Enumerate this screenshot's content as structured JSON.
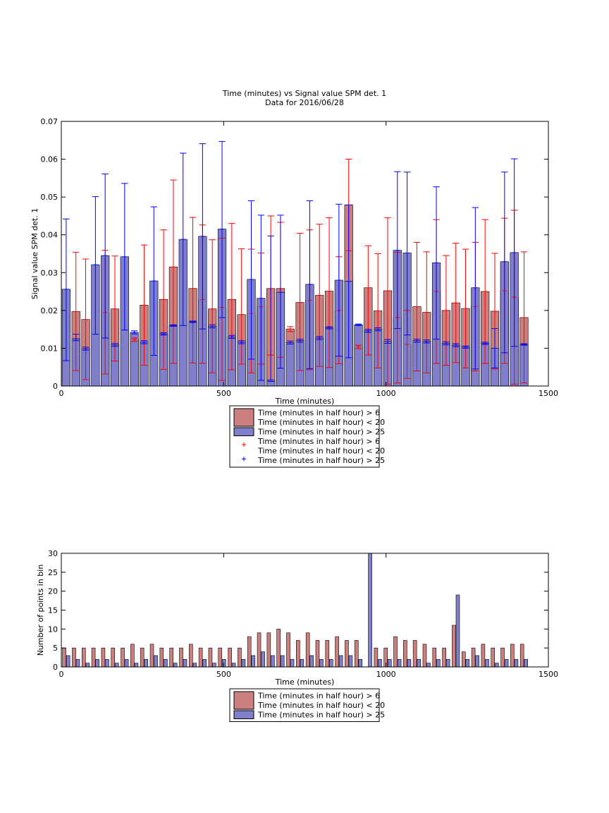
{
  "figure": {
    "title_line1": "Time (minutes) vs Signal value SPM det. 1",
    "title_line2": "Data for 2016/06/28"
  },
  "colors": {
    "red_bar": "#cc7f7f",
    "blue_bar": "#7f7fcc",
    "red_err": "#ff0000",
    "blue_err": "#0000ff"
  },
  "chart_data": [
    {
      "type": "bar",
      "title": "Time (minutes) vs Signal value SPM det. 1",
      "subtitle": "Data for 2016/06/28",
      "xlabel": "Time (minutes)",
      "ylabel": "Signal value SPM det. 1",
      "xlim": [
        0,
        1500
      ],
      "ylim": [
        0,
        0.07
      ],
      "xticks": [
        "0",
        "500",
        "1000",
        "1500"
      ],
      "yticks": [
        "0",
        "0.01",
        "0.02",
        "0.03",
        "0.04",
        "0.05",
        "0.06",
        "0.07"
      ],
      "grid": false,
      "legend_position": "below",
      "legend": [
        "Time (minutes in half hour) > 6\nTime (minutes in half hour) < 20",
        "Time (minutes in half hour) > 25",
        "Time (minutes in half hour) > 6\nTime (minutes in half hour) < 20",
        "Time (minutes in half hour) > 25"
      ],
      "series": [
        {
          "name": "Time (minutes in half hour) > 6 Time (minutes in half hour) < 20",
          "kind": "bar",
          "x": [
            45,
            75,
            135,
            165,
            225,
            255,
            315,
            345,
            405,
            435,
            465,
            495,
            525,
            555,
            585,
            615,
            645,
            675,
            705,
            735,
            765,
            795,
            825,
            855,
            885,
            915,
            945,
            975,
            1005,
            1035,
            1065,
            1095,
            1125,
            1155,
            1185,
            1215,
            1245,
            1275,
            1305,
            1335,
            1365,
            1395,
            1425
          ],
          "values": [
            0.0197,
            0.0176,
            0.0194,
            0.0204,
            0.0123,
            0.0214,
            0.0229,
            0.0315,
            0.0258,
            0.0229,
            0.0204,
            0.0208,
            0.0229,
            0.0189,
            0.0192,
            0.021,
            0.0258,
            0.0258,
            0.0151,
            0.0221,
            0.0227,
            0.024,
            0.0251,
            0.02,
            0.0479,
            0.0104,
            0.026,
            0.0199,
            0.0252,
            0.0181,
            0.011,
            0.021,
            0.0195,
            0.025,
            0.02,
            0.022,
            0.0205,
            0.021,
            0.025,
            0.0198,
            0.0252,
            0.0235,
            0.0181
          ],
          "error_low": [
            0.0041,
            0.0017,
            0.0032,
            0.0066,
            0.0118,
            0.0055,
            0.0044,
            0.006,
            0.0061,
            0.006,
            0.0035,
            0.0015,
            0.0043,
            0.0058,
            0.0035,
            0.0058,
            0.0082,
            0.0076,
            0.0144,
            0.0041,
            0.0043,
            0.0052,
            0.0049,
            0.0059,
            0.0358,
            0.0099,
            0.0082,
            0.0048,
            0.0005,
            0.0008,
            0.002,
            0.004,
            0.0035,
            0.006,
            0.0055,
            0.0062,
            0.0048,
            0.004,
            0.006,
            0.0045,
            0.006,
            0.0005,
            0.0008
          ],
          "error_high": [
            0.0354,
            0.0336,
            0.0359,
            0.0344,
            0.0127,
            0.0373,
            0.0413,
            0.0545,
            0.0446,
            0.0426,
            0.0387,
            0.0391,
            0.043,
            0.0363,
            0.0362,
            0.0352,
            0.045,
            0.0433,
            0.0157,
            0.0404,
            0.0413,
            0.0428,
            0.0445,
            0.0342,
            0.06,
            0.0108,
            0.0371,
            0.035,
            0.0445,
            0.0354,
            0.02,
            0.038,
            0.0355,
            0.044,
            0.0345,
            0.0378,
            0.0362,
            0.038,
            0.044,
            0.0351,
            0.0444,
            0.0465,
            0.0355
          ]
        },
        {
          "name": "Time (minutes in half hour) > 25",
          "kind": "bar",
          "x": [
            15,
            45,
            75,
            105,
            135,
            165,
            195,
            225,
            255,
            285,
            315,
            345,
            375,
            405,
            435,
            465,
            495,
            525,
            555,
            585,
            615,
            645,
            675,
            705,
            735,
            765,
            795,
            825,
            855,
            885,
            915,
            945,
            975,
            1005,
            1035,
            1065,
            1095,
            1125,
            1155,
            1185,
            1215,
            1245,
            1275,
            1305,
            1335,
            1365,
            1395,
            1425
          ],
          "values": [
            0.0256,
            0.0125,
            0.0099,
            0.0321,
            0.0345,
            0.0109,
            0.0342,
            0.0142,
            0.0116,
            0.0278,
            0.0138,
            0.016,
            0.0388,
            0.017,
            0.0396,
            0.0158,
            0.0415,
            0.013,
            0.0116,
            0.0282,
            0.0232,
            0.0016,
            0.0248,
            0.0115,
            0.012,
            0.0269,
            0.0127,
            0.0154,
            0.028,
            0.0277,
            0.0162,
            0.0146,
            0.015,
            0.0118,
            0.0359,
            0.0352,
            0.012,
            0.0118,
            0.0326,
            0.0113,
            0.0108,
            0.0103,
            0.026,
            0.0113,
            0.01,
            0.0329,
            0.0353,
            0.011
          ],
          "error_low": [
            0.0067,
            0.012,
            0.0095,
            0.0137,
            0.0127,
            0.0105,
            0.0148,
            0.0138,
            0.0112,
            0.0081,
            0.0135,
            0.0158,
            0.016,
            0.0168,
            0.0151,
            0.0154,
            0.0181,
            0.0126,
            0.0112,
            0.0071,
            0.0015,
            0.0012,
            0.0047,
            0.0111,
            0.0116,
            0.0046,
            0.0123,
            0.0151,
            0.0079,
            0.0075,
            0.016,
            0.0142,
            0.0146,
            0.0113,
            0.0152,
            0.0135,
            0.0116,
            0.0114,
            0.0124,
            0.0109,
            0.0104,
            0.01,
            0.0045,
            0.011,
            0.0048,
            0.0088,
            0.0105,
            0.0108
          ],
          "error_high": [
            0.0442,
            0.0137,
            0.0103,
            0.0501,
            0.0561,
            0.0113,
            0.0536,
            0.0146,
            0.012,
            0.0474,
            0.0141,
            0.0162,
            0.0616,
            0.0172,
            0.0641,
            0.0162,
            0.0647,
            0.0134,
            0.012,
            0.049,
            0.0452,
            0.0397,
            0.0452,
            0.0119,
            0.0124,
            0.049,
            0.0131,
            0.0157,
            0.0481,
            0.0479,
            0.0164,
            0.015,
            0.0154,
            0.0123,
            0.0567,
            0.0566,
            0.0124,
            0.0122,
            0.0527,
            0.0117,
            0.0112,
            0.0106,
            0.0472,
            0.0116,
            0.0152,
            0.0566,
            0.0601,
            0.0112
          ]
        }
      ]
    },
    {
      "type": "bar",
      "xlabel": "Time (minutes)",
      "ylabel": "Number of points in bin",
      "xlim": [
        0,
        1500
      ],
      "ylim": [
        0,
        30
      ],
      "xticks": [
        "0",
        "500",
        "1000",
        "1500"
      ],
      "yticks": [
        "0",
        "5",
        "10",
        "15",
        "20",
        "25",
        "30"
      ],
      "grid": false,
      "legend_position": "below",
      "legend": [
        "Time (minutes in half hour) > 6\nTime (minutes in half hour) < 20",
        "Time (minutes in half hour) > 25"
      ],
      "x": [
        15,
        45,
        75,
        105,
        135,
        165,
        195,
        225,
        255,
        285,
        315,
        345,
        375,
        405,
        435,
        465,
        495,
        525,
        555,
        585,
        615,
        645,
        675,
        705,
        735,
        765,
        795,
        825,
        855,
        885,
        915,
        945,
        975,
        1005,
        1035,
        1065,
        1095,
        1125,
        1155,
        1185,
        1215,
        1245,
        1275,
        1305,
        1335,
        1365,
        1395,
        1425
      ],
      "series": [
        {
          "name": "Time (minutes in half hour) > 6 Time (minutes in half hour) < 20",
          "values": [
            5,
            5,
            5,
            5,
            5,
            5,
            5,
            6,
            5,
            6,
            5,
            5,
            5,
            6,
            5,
            5,
            5,
            5,
            5,
            8,
            9,
            9,
            10,
            9,
            7,
            9,
            7,
            7,
            8,
            7,
            7,
            0,
            5,
            5,
            8,
            7,
            7,
            6,
            5,
            5,
            11,
            4,
            5,
            6,
            5,
            5,
            6,
            6
          ]
        },
        {
          "name": "Time (minutes in half hour) > 25",
          "values": [
            3,
            2,
            1,
            2,
            2,
            1,
            2,
            1,
            2,
            3,
            2,
            1,
            2,
            1,
            2,
            1,
            2,
            1,
            2,
            3,
            4,
            3,
            3,
            2,
            2,
            3,
            2,
            2,
            3,
            3,
            2,
            30,
            2,
            2,
            2,
            2,
            2,
            1,
            2,
            2,
            19,
            2,
            3,
            2,
            1,
            2,
            2,
            2
          ]
        }
      ]
    }
  ]
}
